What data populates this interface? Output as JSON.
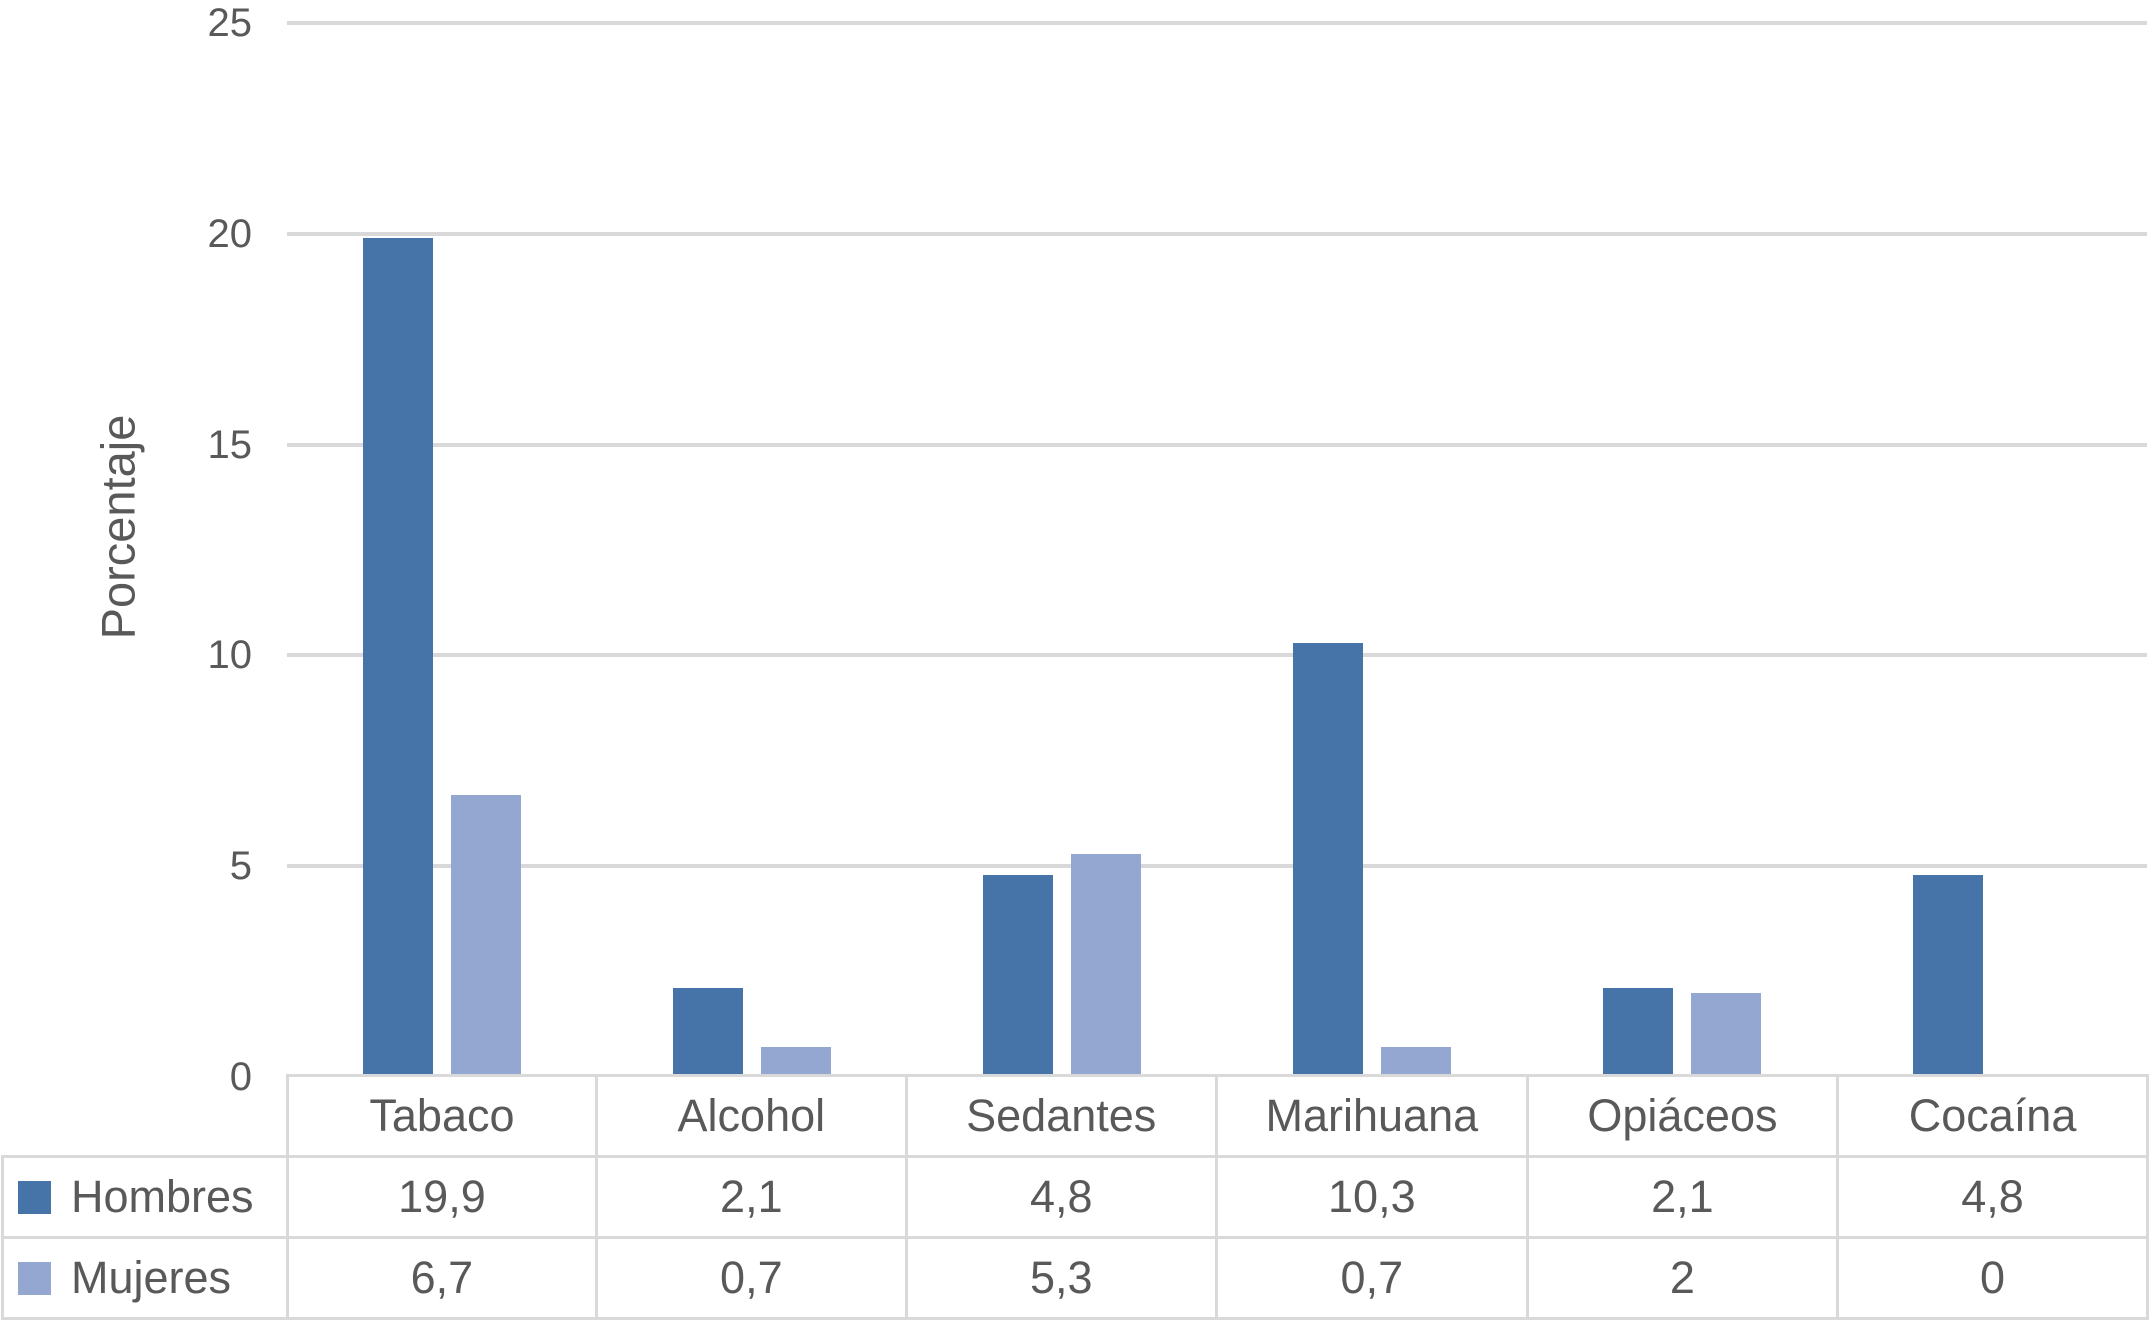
{
  "chart_data": {
    "type": "bar",
    "title": "",
    "categories": [
      "Tabaco",
      "Alcohol",
      "Sedantes",
      "Marihuana",
      "Opiáceos",
      "Cocaína"
    ],
    "series": [
      {
        "name": "Hombres",
        "color": "#4673A8",
        "values": [
          19.9,
          2.1,
          4.8,
          10.3,
          2.1,
          4.8
        ],
        "display_values": [
          "19,9",
          "2,1",
          "4,8",
          "10,3",
          "2,1",
          "4,8"
        ]
      },
      {
        "name": "Mujeres",
        "color": "#93A7D0",
        "values": [
          6.7,
          0.7,
          5.3,
          0.7,
          2,
          0
        ],
        "display_values": [
          "6,7",
          "0,7",
          "5,3",
          "0,7",
          "2",
          "0"
        ]
      }
    ],
    "xlabel": "",
    "ylabel": "Porcentaje",
    "ylim": [
      0,
      25
    ],
    "yticks": [
      0,
      5,
      10,
      15,
      20,
      25
    ],
    "ytick_labels": [
      "0",
      "5",
      "10",
      "15",
      "20",
      "25"
    ],
    "grid": true,
    "legend_position": "table-left-column",
    "value_decimal_separator": ","
  },
  "colors": {
    "series_hombres": "#4673A8",
    "series_mujeres": "#93A7D0",
    "gridline": "#D9D9D9",
    "table_border": "#D9D9D9",
    "text": "#595959",
    "background": "#FFFFFF"
  }
}
